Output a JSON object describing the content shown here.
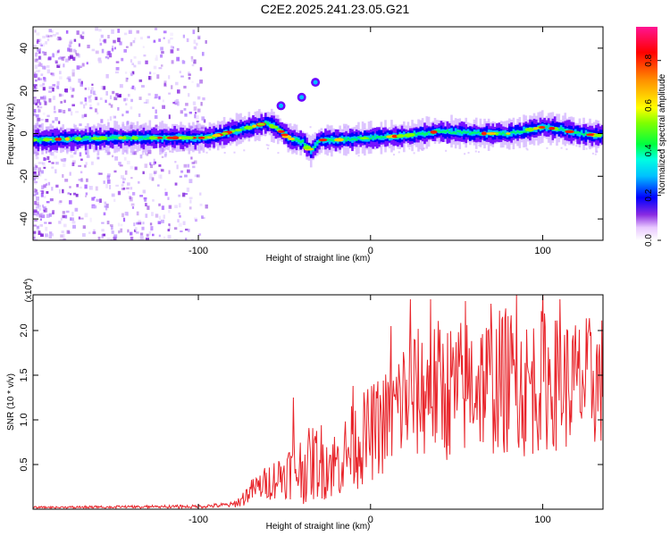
{
  "title": "C2E2.2025.241.23.05.G21",
  "chart_data": [
    {
      "type": "heatmap",
      "name": "spectrogram",
      "xlabel": "Height of straight line (km)",
      "ylabel": "Frequency (Hz)",
      "xlim": [
        -196,
        135
      ],
      "ylim": [
        -50,
        50
      ],
      "xticks": [
        -100,
        0,
        100
      ],
      "xtick_labels": [
        "-100",
        "0",
        "100"
      ],
      "yticks": [
        -40,
        -20,
        0,
        20,
        40
      ],
      "ytick_labels": [
        "-40",
        "-20",
        "0",
        "20",
        "40"
      ],
      "colorbar": {
        "label": "Normalized spectral amplitude",
        "range": [
          0,
          0.95
        ],
        "ticks": [
          0.0,
          0.2,
          0.4,
          0.6,
          0.8
        ],
        "tick_labels": [
          "0.0",
          "0.2",
          "0.4",
          "0.6",
          "0.8"
        ]
      },
      "trace": {
        "x": [
          -196,
          -150,
          -110,
          -95,
          -80,
          -65,
          -60,
          -52,
          -48,
          -40,
          -35,
          -30,
          -20,
          0,
          20,
          40,
          60,
          80,
          100,
          110,
          120,
          135
        ],
        "y": [
          -3,
          -2,
          -2,
          -2,
          1,
          4,
          5,
          1,
          -2,
          -4,
          -8,
          -3,
          -3,
          -2,
          -1,
          1,
          0,
          0,
          3,
          2,
          0,
          -1
        ]
      },
      "echoes": {
        "x": [
          -52,
          -40,
          -32
        ],
        "y": [
          13,
          17,
          24
        ]
      }
    },
    {
      "type": "line",
      "name": "snr",
      "xlabel": "Height of straight line (km)",
      "ylabel": "SNR (10 * v/v)",
      "multiplier_label": "(x10",
      "multiplier_exp": "4",
      "multiplier_close": ")",
      "xlim": [
        -196,
        135
      ],
      "ylim": [
        0,
        2.4
      ],
      "xticks": [
        -100,
        0,
        100
      ],
      "xtick_labels": [
        "-100",
        "0",
        "100"
      ],
      "yticks": [
        0.5,
        1.0,
        1.5,
        2.0
      ],
      "ytick_labels": [
        "0.5",
        "1.0",
        "1.5",
        "2.0"
      ],
      "color": "#e8242a",
      "envelope": {
        "x": [
          -196,
          -150,
          -100,
          -80,
          -75,
          -70,
          -60,
          -50,
          -45,
          -40,
          -30,
          -20,
          -10,
          0,
          10,
          20,
          30,
          40,
          50,
          60,
          70,
          80,
          90,
          100,
          110,
          120,
          135
        ],
        "mean": [
          0.02,
          0.02,
          0.03,
          0.05,
          0.1,
          0.2,
          0.3,
          0.4,
          0.45,
          0.45,
          0.55,
          0.5,
          0.7,
          0.85,
          1.0,
          1.25,
          1.3,
          1.35,
          1.3,
          1.45,
          1.4,
          1.45,
          1.35,
          1.45,
          1.4,
          1.4,
          1.45
        ],
        "spread": [
          0.01,
          0.02,
          0.02,
          0.03,
          0.08,
          0.12,
          0.2,
          0.28,
          0.35,
          0.4,
          0.45,
          0.4,
          0.5,
          0.55,
          0.6,
          0.75,
          0.75,
          0.8,
          0.8,
          0.8,
          0.8,
          0.85,
          0.8,
          0.8,
          0.75,
          0.75,
          0.75
        ]
      },
      "peaks": {
        "x": [
          -45,
          -10,
          12,
          23,
          35,
          55,
          70,
          85,
          100,
          110
        ],
        "y": [
          1.25,
          1.38,
          2.05,
          2.35,
          2.35,
          2.33,
          2.3,
          2.4,
          2.42,
          2.35
        ]
      }
    }
  ]
}
